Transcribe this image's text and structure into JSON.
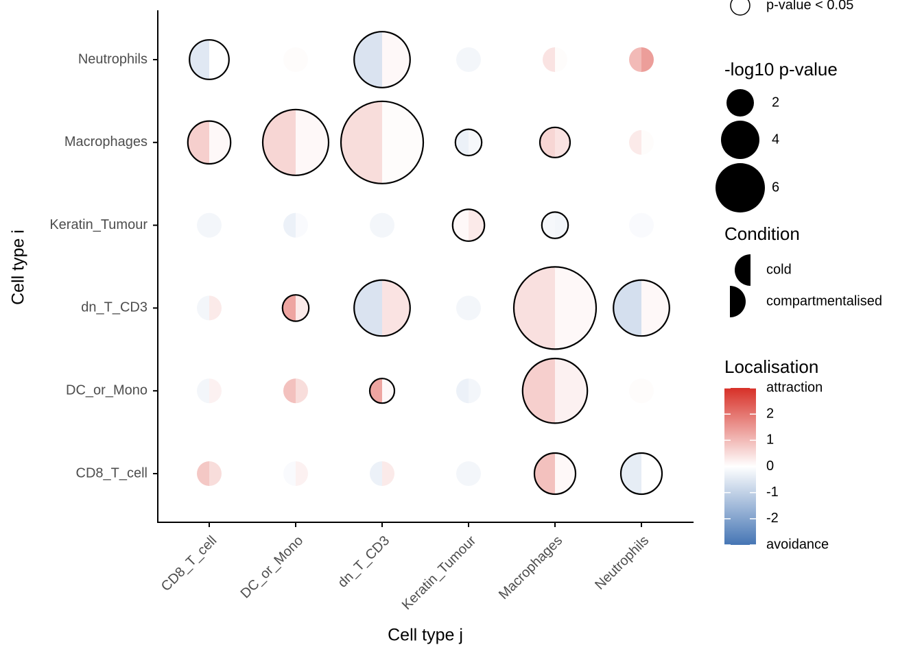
{
  "chart_data": {
    "type": "split-dot",
    "x_title": "Cell type j",
    "y_title": "Cell type i",
    "categories_x": [
      "CD8_T_cell",
      "DC_or_Mono",
      "dn_T_CD3",
      "Keratin_Tumour",
      "Macrophages",
      "Neutrophils"
    ],
    "categories_y": [
      "CD8_T_cell",
      "DC_or_Mono",
      "dn_T_CD3",
      "Keratin_Tumour",
      "Macrophages",
      "Neutrophils"
    ],
    "size_title": "-log10 p-value",
    "size_breaks": [
      2,
      4,
      6
    ],
    "size": [
      [
        1.5,
        1.5,
        1.5,
        1.5,
        4.5,
        4.5
      ],
      [
        1.5,
        1.5,
        1.5,
        1.5,
        8.8,
        1.5
      ],
      [
        1.5,
        1.8,
        7.2,
        1.5,
        12,
        7.2
      ],
      [
        1.5,
        1.5,
        1.5,
        2.8,
        1.8,
        1.5
      ],
      [
        4.8,
        9,
        12,
        1.8,
        2.5,
        1.5
      ],
      [
        4.2,
        1.5,
        7.2,
        1.5,
        1.5,
        1.5
      ]
    ],
    "significance_label": "p-value < 0.05",
    "significant": [
      [
        false,
        false,
        false,
        false,
        true,
        true
      ],
      [
        false,
        false,
        true,
        false,
        true,
        false
      ],
      [
        false,
        true,
        true,
        false,
        true,
        true
      ],
      [
        false,
        false,
        false,
        true,
        true,
        false
      ],
      [
        true,
        true,
        true,
        true,
        true,
        false
      ],
      [
        true,
        false,
        true,
        false,
        false,
        false
      ]
    ],
    "condition_title": "Condition",
    "series": [
      {
        "name": "cold",
        "side": "left",
        "values": [
          [
            0.8,
            -0.1,
            -0.3,
            -0.2,
            0.9,
            -0.4
          ],
          [
            -0.2,
            0.9,
            1.3,
            -0.3,
            0.7,
            0.05
          ],
          [
            -0.2,
            1.3,
            -0.6,
            -0.2,
            0.45,
            -0.7
          ],
          [
            -0.2,
            -0.3,
            -0.2,
            0.1,
            -0.15,
            -0.1
          ],
          [
            0.7,
            0.6,
            0.5,
            -0.3,
            0.6,
            0.3
          ],
          [
            -0.5,
            0.05,
            -0.6,
            -0.2,
            0.4,
            1.0
          ]
        ]
      },
      {
        "name": "compartmentalised",
        "side": "right",
        "values": [
          [
            0.5,
            0.2,
            0.3,
            -0.2,
            0.1,
            0.0
          ],
          [
            0.2,
            0.5,
            0.1,
            -0.2,
            0.2,
            0.05
          ],
          [
            0.3,
            0.3,
            0.4,
            -0.2,
            0.1,
            0.1
          ],
          [
            -0.2,
            -0.1,
            -0.2,
            0.3,
            -0.2,
            -0.1
          ],
          [
            0.1,
            0.1,
            0.05,
            -0.15,
            0.4,
            0.05
          ],
          [
            0.0,
            0.05,
            0.1,
            -0.2,
            0.05,
            1.4
          ]
        ]
      }
    ],
    "color_title": "Localisation",
    "color_lim": [
      -3,
      3
    ],
    "colors": [
      "#4575b4",
      "#ffffff",
      "#d73027"
    ],
    "color_ticks": [
      {
        "value": 3,
        "label": "attraction"
      },
      2,
      1,
      0,
      -1,
      -2,
      {
        "value": -3,
        "label": "avoidance"
      }
    ]
  }
}
